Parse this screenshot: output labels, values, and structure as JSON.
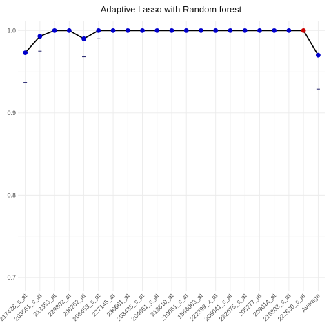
{
  "chart_data": {
    "type": "line",
    "title": "Adaptive Lasso with Random forest",
    "xlabel": "",
    "ylabel": "",
    "categories": [
      "217428_s_at",
      "203661_s_at",
      "213353_at",
      "229802_at",
      "206262_at",
      "206453_s_at",
      "227145_at",
      "236661_at",
      "203435_s_at",
      "204961_s_at",
      "212610_at",
      "210061_s_at",
      "1564063_at",
      "222399_x_at",
      "205041_s_at",
      "222075_s_at",
      "205277_at",
      "209014_at",
      "218803_s_at",
      "222630_s_at",
      "Average"
    ],
    "series": [
      {
        "values": [
          0.973,
          0.993,
          1.0,
          1.0,
          0.99,
          1.0,
          1.0,
          1.0,
          1.0,
          1.0,
          1.0,
          1.0,
          1.0,
          1.0,
          1.0,
          1.0,
          1.0,
          1.0,
          1.0,
          1.0,
          0.97
        ],
        "point_colors": [
          "#0000cc",
          "#0000cc",
          "#0000cc",
          "#0000cc",
          "#0000cc",
          "#0000cc",
          "#0000cc",
          "#0000cc",
          "#0000cc",
          "#0000cc",
          "#0000cc",
          "#0000cc",
          "#0000cc",
          "#0000cc",
          "#0000cc",
          "#0000cc",
          "#0000cc",
          "#0000cc",
          "#0000cc",
          "#cc0000",
          "#0000cc"
        ],
        "lower_marks": [
          0.937,
          0.975,
          null,
          null,
          0.968,
          0.99,
          null,
          null,
          null,
          null,
          null,
          null,
          null,
          null,
          null,
          null,
          null,
          null,
          null,
          null,
          0.929
        ]
      }
    ],
    "yticks": [
      "0.7",
      "0.8",
      "0.9",
      "1.0"
    ],
    "ylim": [
      0.684,
      1.012
    ],
    "grid": true,
    "legend": "none",
    "line_color": "#000000"
  }
}
